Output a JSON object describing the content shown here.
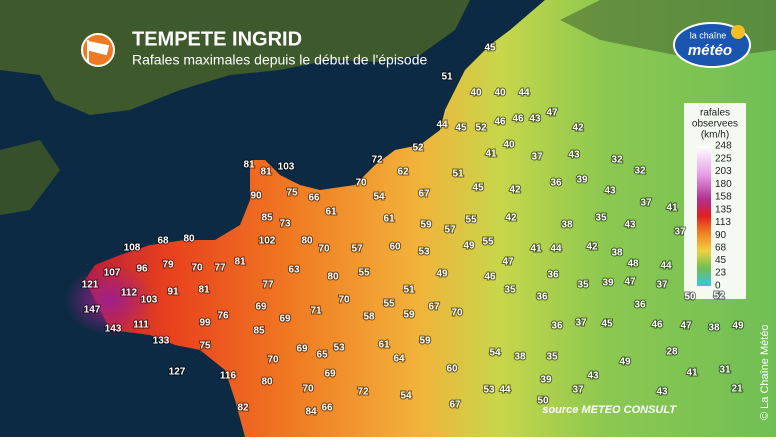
{
  "header": {
    "title": "TEMPETE INGRID",
    "subtitle": "Rafales maximales depuis le début de l'épisode"
  },
  "logo": {
    "line1": "la chaîne",
    "line2": "météo"
  },
  "legend": {
    "title": [
      "rafales",
      "observees",
      "(km/h)"
    ],
    "ticks": [
      248,
      225,
      203,
      180,
      158,
      135,
      113,
      90,
      68,
      45,
      23,
      0
    ]
  },
  "stations": [
    45,
    51,
    40,
    40,
    44,
    47,
    46,
    43,
    44,
    45,
    52,
    46,
    42,
    52,
    40,
    41,
    37,
    43,
    32,
    32,
    81,
    81,
    103,
    72,
    62,
    51,
    70,
    45,
    42,
    36,
    39,
    90,
    75,
    66,
    54,
    67,
    43,
    61,
    37,
    41,
    85,
    73,
    61,
    59,
    55,
    42,
    38,
    35,
    57,
    43,
    37,
    102,
    80,
    70,
    57,
    60,
    53,
    49,
    55,
    41,
    44,
    42,
    38,
    48,
    108,
    68,
    80,
    47,
    44,
    107,
    96,
    79,
    70,
    77,
    81,
    63,
    80,
    55,
    49,
    46,
    36,
    35,
    39,
    47,
    37,
    121,
    77,
    112,
    103,
    91,
    81,
    51,
    35,
    36,
    50,
    52,
    147,
    69,
    70,
    55,
    71,
    59,
    67,
    70,
    58,
    36,
    76,
    99,
    69,
    143,
    111,
    85,
    37,
    36,
    45,
    46,
    47,
    38,
    49,
    133,
    75,
    61,
    59,
    53,
    69,
    65,
    54,
    38,
    35,
    28,
    70,
    64,
    60,
    49,
    127,
    116,
    69,
    43,
    41,
    31,
    80,
    70,
    72,
    54,
    53,
    44,
    39,
    37,
    43,
    21,
    82,
    84,
    66,
    67,
    50
  ],
  "source": "source METEO CONSULT",
  "copyright": "© La Chaîne Météo"
}
